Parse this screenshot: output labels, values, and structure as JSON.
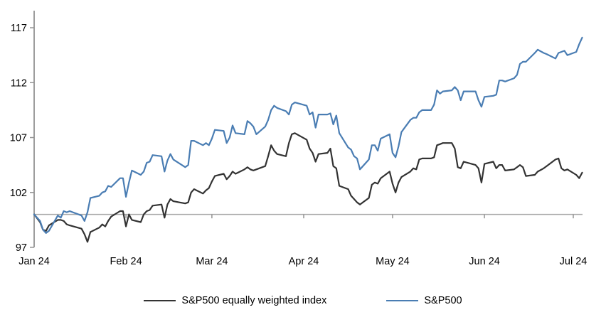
{
  "chart_data": {
    "type": "line",
    "title": "",
    "xlabel": "",
    "ylabel": "",
    "grid": false,
    "legend_position": "bottom-center",
    "y_ticks": [
      97,
      102,
      107,
      112,
      117
    ],
    "ylim": [
      97,
      118.5
    ],
    "baseline_value": 100,
    "x_tick_labels": [
      "Jan 24",
      "Feb 24",
      "Mar 24",
      "Apr 24",
      "May 24",
      "Jun 24",
      "Jul 24"
    ],
    "x_tick_days": [
      0,
      31,
      60,
      91,
      121,
      152,
      182
    ],
    "x_day_range": [
      0,
      185
    ],
    "x": [
      0,
      2,
      3,
      4,
      5,
      8,
      9,
      10,
      11,
      12,
      16,
      17,
      18,
      19,
      22,
      23,
      24,
      25,
      26,
      29,
      30,
      31,
      32,
      33,
      36,
      37,
      38,
      39,
      40,
      43,
      44,
      45,
      46,
      47,
      51,
      52,
      53,
      54,
      57,
      58,
      59,
      60,
      61,
      64,
      65,
      66,
      67,
      68,
      71,
      72,
      73,
      74,
      75,
      78,
      79,
      80,
      81,
      82,
      85,
      86,
      87,
      88,
      92,
      93,
      94,
      95,
      96,
      99,
      100,
      101,
      102,
      103,
      106,
      107,
      108,
      109,
      110,
      113,
      114,
      115,
      116,
      117,
      120,
      121,
      122,
      123,
      124,
      127,
      128,
      129,
      130,
      131,
      134,
      135,
      136,
      137,
      138,
      141,
      142,
      143,
      144,
      145,
      149,
      150,
      151,
      152,
      155,
      156,
      157,
      158,
      159,
      162,
      163,
      164,
      165,
      166,
      169,
      170,
      172,
      173,
      176,
      177,
      178,
      179,
      180,
      183,
      184,
      185
    ],
    "series": [
      {
        "name": "S&P500 equally weighted index",
        "color": "#333333",
        "values": [
          100,
          99.3,
          98.6,
          98.5,
          99.0,
          99.5,
          99.5,
          99.4,
          99.1,
          99.0,
          98.7,
          98.2,
          97.5,
          98.4,
          98.8,
          99.1,
          98.9,
          99.4,
          99.8,
          100.3,
          100.3,
          98.9,
          100.0,
          99.5,
          99.3,
          100.0,
          100.3,
          100.4,
          100.8,
          100.9,
          99.7,
          100.9,
          101.4,
          101.2,
          101.0,
          101.1,
          102.0,
          102.3,
          101.9,
          102.2,
          102.4,
          103.0,
          103.5,
          103.7,
          103.2,
          103.5,
          103.9,
          103.7,
          104.1,
          104.3,
          104.1,
          104.0,
          104.1,
          104.4,
          105.3,
          106.3,
          105.8,
          105.5,
          105.3,
          106.5,
          107.3,
          107.4,
          106.8,
          106.0,
          105.6,
          104.8,
          105.5,
          105.6,
          106.0,
          104.4,
          104.2,
          102.6,
          102.3,
          101.7,
          101.4,
          101.1,
          100.9,
          101.5,
          102.7,
          102.9,
          102.8,
          103.3,
          103.9,
          102.8,
          102.0,
          102.9,
          103.4,
          103.9,
          104.2,
          104.1,
          105.0,
          105.1,
          105.1,
          105.2,
          106.3,
          106.4,
          106.5,
          106.5,
          106.0,
          104.3,
          104.2,
          104.8,
          104.5,
          104.2,
          102.9,
          104.6,
          104.8,
          104.2,
          104.5,
          104.5,
          104.0,
          104.1,
          104.3,
          104.5,
          104.3,
          103.5,
          103.6,
          103.9,
          104.2,
          104.4,
          105.0,
          105.1,
          104.2,
          104.0,
          104.1,
          103.6,
          103.3,
          103.8
        ]
      },
      {
        "name": "S&P500",
        "color": "#4a7db3",
        "values": [
          100,
          99.4,
          98.6,
          98.3,
          98.5,
          99.9,
          99.7,
          100.3,
          100.2,
          100.3,
          99.9,
          99.4,
          100.2,
          101.5,
          101.7,
          102.0,
          102.1,
          102.6,
          102.5,
          103.3,
          103.3,
          101.6,
          102.9,
          104.0,
          103.6,
          103.9,
          104.7,
          104.8,
          105.4,
          105.3,
          103.9,
          104.9,
          105.5,
          105.0,
          104.3,
          104.5,
          106.7,
          106.7,
          106.3,
          106.5,
          106.3,
          106.9,
          107.7,
          107.6,
          106.5,
          107.0,
          108.1,
          107.4,
          107.3,
          108.5,
          108.3,
          108.0,
          107.3,
          108.0,
          108.6,
          109.5,
          109.9,
          109.7,
          109.4,
          109.1,
          110.0,
          110.2,
          109.9,
          109.1,
          109.3,
          107.9,
          109.1,
          109.1,
          109.2,
          108.2,
          109.0,
          107.4,
          106.1,
          105.9,
          105.3,
          105.1,
          104.1,
          105.0,
          106.3,
          106.3,
          105.8,
          106.9,
          107.3,
          105.6,
          105.2,
          106.2,
          107.5,
          108.6,
          108.8,
          108.8,
          109.3,
          109.5,
          109.5,
          110.0,
          111.3,
          111.0,
          111.2,
          111.3,
          111.6,
          111.3,
          110.4,
          111.2,
          111.2,
          110.4,
          109.8,
          110.7,
          110.8,
          110.9,
          112.2,
          112.2,
          112.1,
          112.4,
          112.7,
          113.7,
          113.9,
          113.9,
          114.7,
          115.0,
          114.7,
          114.6,
          114.2,
          114.7,
          114.8,
          114.9,
          114.5,
          114.8,
          115.5,
          116.1
        ]
      }
    ],
    "colors": {
      "axis": "#949494",
      "baseline": "#a6a6a6",
      "tick_text": "#000000"
    }
  },
  "legend": {
    "items": [
      {
        "label": "S&P500 equally weighted index",
        "color": "#333333"
      },
      {
        "label": "S&P500",
        "color": "#4a7db3"
      }
    ]
  }
}
